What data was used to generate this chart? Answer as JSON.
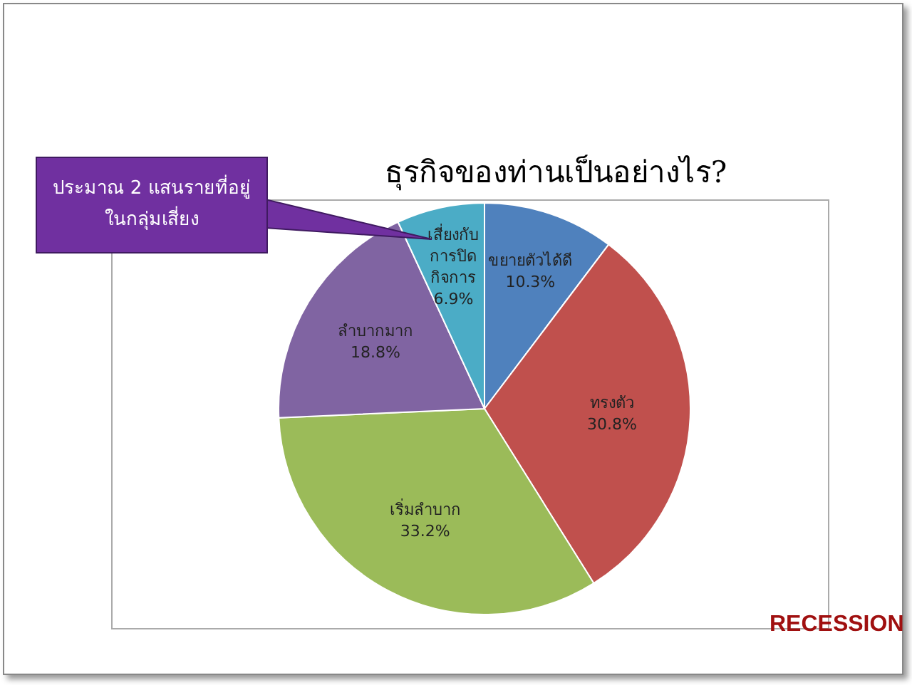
{
  "chart_data": {
    "type": "pie",
    "title": "ธุรกิจของท่านเป็นอย่างไร?",
    "categories": [
      "ขยายตัวได้ดี",
      "ทรงตัว",
      "เริ่มลำบาก",
      "ลำบากมาก",
      "เสี่ยงกับการปิดกิจการ"
    ],
    "values": [
      10.3,
      30.8,
      33.2,
      18.8,
      6.9
    ],
    "colors": [
      "#4f81bd",
      "#c0504d",
      "#9bbb59",
      "#8064a2",
      "#4bacc6"
    ],
    "value_labels": [
      "10.3%",
      "30.8%",
      "33.2%",
      "18.8%",
      "6.9%"
    ],
    "legend": false,
    "annotations": [
      "ประมาณ 2 แสนรายที่อยู่ในกลุ่มเสี่ยง",
      "RECESSION"
    ]
  }
}
